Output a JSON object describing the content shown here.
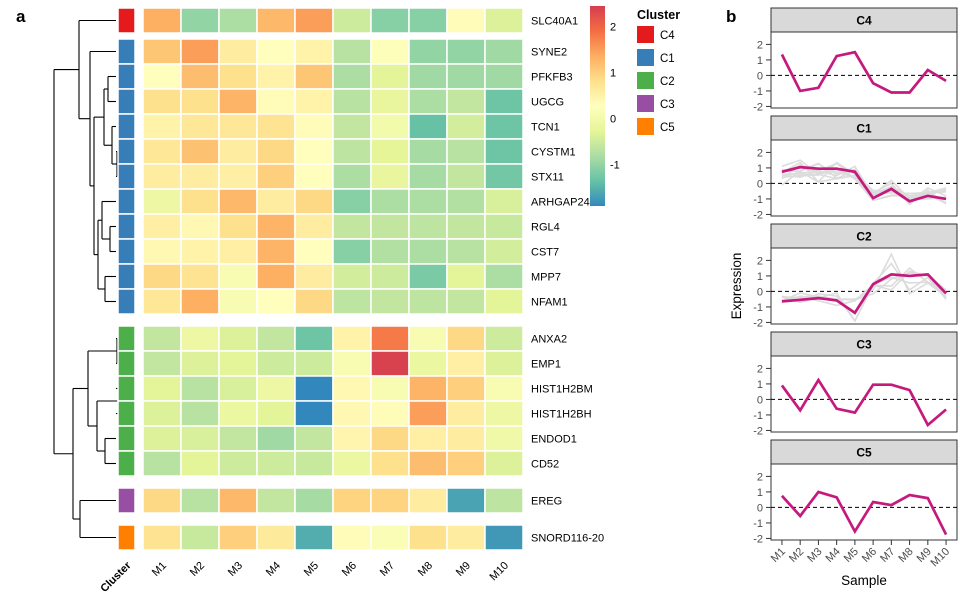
{
  "figure": {
    "panel_a_label": "a",
    "panel_b_label": "b"
  },
  "colors": {
    "mean_line": "#C5197D",
    "gray_line": "#DCDCDC",
    "strip_bg": "#D9D9D9",
    "strip_border": "#333333",
    "panel_border": "#333333",
    "axis_text": "#4D4D4D",
    "dendrogram": "#000000",
    "heat_palette": [
      "#3288BD",
      "#66C2A5",
      "#ABDDA4",
      "#E6F598",
      "#FFFFBF",
      "#FEE08B",
      "#FDAE61",
      "#F46D43",
      "#D53E4F"
    ],
    "heat_domain": [
      -1.9,
      2.45
    ]
  },
  "chart_data": [
    {
      "type": "heatmap",
      "columns": [
        "M1",
        "M2",
        "M3",
        "M4",
        "M5",
        "M6",
        "M7",
        "M8",
        "M9",
        "M10"
      ],
      "row_annotation_label": "Cluster",
      "rows": [
        {
          "gene": "SLC40A1",
          "cluster": "C4",
          "values": [
            1.35,
            -1.0,
            -0.8,
            1.25,
            1.5,
            -0.5,
            -1.1,
            -1.1,
            0.35,
            -0.35
          ]
        },
        {
          "gene": "SYNE2",
          "cluster": "C1",
          "values": [
            1.1,
            1.5,
            0.6,
            0.3,
            0.5,
            -0.7,
            0.2,
            -1.0,
            -1.0,
            -0.9
          ]
        },
        {
          "gene": "PFKFB3",
          "cluster": "C1",
          "values": [
            0.3,
            1.2,
            0.8,
            0.5,
            1.1,
            -0.8,
            -0.3,
            -0.9,
            -0.9,
            -0.9
          ]
        },
        {
          "gene": "UGCG",
          "cluster": "C1",
          "values": [
            0.8,
            0.8,
            1.3,
            0.35,
            0.5,
            -0.7,
            -0.2,
            -0.8,
            -0.6,
            -1.3
          ]
        },
        {
          "gene": "TCN1",
          "cluster": "C1",
          "values": [
            0.5,
            0.7,
            0.7,
            0.75,
            0.35,
            -0.6,
            0.0,
            -1.35,
            -0.45,
            -1.3
          ]
        },
        {
          "gene": "CYSTM1",
          "cluster": "C1",
          "values": [
            0.7,
            1.15,
            0.6,
            0.9,
            0.3,
            -0.65,
            -0.25,
            -0.85,
            -0.7,
            -1.3
          ]
        },
        {
          "gene": "STX11",
          "cluster": "C1",
          "values": [
            0.6,
            0.6,
            0.55,
            1.0,
            0.3,
            -0.8,
            -0.2,
            -0.85,
            -0.6,
            -1.25
          ]
        },
        {
          "gene": "ARHGAP24",
          "cluster": "C1",
          "values": [
            -0.1,
            0.8,
            1.25,
            0.6,
            0.9,
            -1.1,
            -0.8,
            -0.8,
            -0.75,
            -0.4
          ]
        },
        {
          "gene": "RGL4",
          "cluster": "C1",
          "values": [
            0.55,
            0.4,
            0.8,
            1.3,
            0.6,
            -0.6,
            -0.6,
            -0.65,
            -0.6,
            -0.55
          ]
        },
        {
          "gene": "CST7",
          "cluster": "C1",
          "values": [
            0.4,
            0.5,
            0.55,
            1.3,
            0.3,
            -1.1,
            -0.75,
            -0.8,
            -0.7,
            -0.45
          ]
        },
        {
          "gene": "MPP7",
          "cluster": "C1",
          "values": [
            0.9,
            0.75,
            0.1,
            1.35,
            0.6,
            -0.45,
            -0.5,
            -1.2,
            -0.3,
            -0.8
          ]
        },
        {
          "gene": "NFAM1",
          "cluster": "C1",
          "values": [
            0.7,
            1.35,
            0.1,
            0.3,
            0.9,
            -0.65,
            -0.6,
            -0.65,
            -0.6,
            -0.3
          ]
        },
        {
          "gene": "ANXA2",
          "cluster": "C2",
          "values": [
            -0.6,
            -0.1,
            -0.35,
            -0.6,
            -1.3,
            0.5,
            1.8,
            0.1,
            0.9,
            -0.5
          ]
        },
        {
          "gene": "EMP1",
          "cluster": "C2",
          "values": [
            -0.6,
            -0.35,
            -0.3,
            -0.5,
            -0.5,
            0.1,
            2.4,
            -0.15,
            0.55,
            -0.35
          ]
        },
        {
          "gene": "HIST1H2BM",
          "cluster": "C2",
          "values": [
            -0.3,
            -0.7,
            -0.4,
            -0.1,
            -1.9,
            0.4,
            0.1,
            1.3,
            1.0,
            0.1
          ]
        },
        {
          "gene": "HIST1H2BH",
          "cluster": "C2",
          "values": [
            -0.35,
            -0.7,
            -0.15,
            -0.3,
            -1.9,
            0.4,
            0.35,
            1.5,
            0.6,
            -0.1
          ]
        },
        {
          "gene": "ENDOD1",
          "cluster": "C2",
          "values": [
            -0.35,
            -0.4,
            -0.6,
            -0.9,
            -0.6,
            0.45,
            0.9,
            0.55,
            0.6,
            -0.05
          ]
        },
        {
          "gene": "CD52",
          "cluster": "C2",
          "values": [
            -0.7,
            -0.3,
            -0.5,
            -0.5,
            -0.55,
            -0.15,
            0.8,
            1.2,
            1.0,
            -0.35
          ]
        },
        {
          "gene": "EREG",
          "cluster": "C3",
          "values": [
            0.9,
            -0.7,
            1.25,
            -0.6,
            -0.85,
            0.95,
            0.95,
            0.6,
            -1.65,
            -0.65
          ]
        },
        {
          "gene": "SNORD116-20",
          "cluster": "C5",
          "values": [
            0.75,
            -0.55,
            1.0,
            0.65,
            -1.55,
            0.35,
            0.15,
            0.8,
            0.6,
            -1.75
          ]
        }
      ],
      "colorbar": {
        "ticks": [
          2,
          1,
          0,
          -1
        ],
        "range": [
          -1.9,
          2.45
        ]
      },
      "legend": {
        "title": "Cluster",
        "items": [
          {
            "label": "C4",
            "color": "#E41A1C"
          },
          {
            "label": "C1",
            "color": "#377EB8"
          },
          {
            "label": "C2",
            "color": "#4DAF4A"
          },
          {
            "label": "C3",
            "color": "#984EA3"
          },
          {
            "label": "C5",
            "color": "#FF7F00"
          }
        ]
      },
      "dendrogram": {
        "x": 54,
        "c": [
          {
            "x": 79,
            "c": [
              {
                "leaf": "SLC40A1"
              },
              {
                "x": 90,
                "c": [
                  {
                    "leaf": "SYNE2"
                  },
                  {
                    "x": 94,
                    "c": [
                      {
                        "x": 104,
                        "c": [
                          {
                            "x": 108,
                            "c": [
                              {
                                "leaf": "PFKFB3"
                              },
                              {
                                "leaf": "UGCG"
                              }
                            ]
                          },
                          {
                            "x": 112,
                            "c": [
                              {
                                "leaf": "TCN1"
                              },
                              {
                                "x": 117,
                                "c": [
                                  {
                                    "leaf": "CYSTM1"
                                  },
                                  {
                                    "leaf": "STX11"
                                  }
                                ]
                              }
                            ]
                          }
                        ]
                      },
                      {
                        "x": 98,
                        "c": [
                          {
                            "x": 102,
                            "c": [
                              {
                                "leaf": "ARHGAP24"
                              },
                              {
                                "x": 110,
                                "c": [
                                  {
                                    "leaf": "RGL4"
                                  },
                                  {
                                    "leaf": "CST7"
                                  }
                                ]
                              }
                            ]
                          },
                          {
                            "x": 105,
                            "c": [
                              {
                                "leaf": "MPP7"
                              },
                              {
                                "leaf": "NFAM1"
                              }
                            ]
                          }
                        ]
                      }
                    ]
                  }
                ]
              }
            ]
          },
          {
            "x": 73,
            "c": [
              {
                "x": 88,
                "c": [
                  {
                    "x": 117,
                    "c": [
                      {
                        "leaf": "ANXA2"
                      },
                      {
                        "leaf": "EMP1"
                      }
                    ]
                  },
                  {
                    "x": 97,
                    "c": [
                      {
                        "x": 127,
                        "c": [
                          {
                            "leaf": "HIST1H2BM"
                          },
                          {
                            "leaf": "HIST1H2BH"
                          }
                        ]
                      },
                      {
                        "x": 105,
                        "c": [
                          {
                            "leaf": "ENDOD1"
                          },
                          {
                            "leaf": "CD52"
                          }
                        ]
                      }
                    ]
                  }
                ]
              },
              {
                "x": 80,
                "c": [
                  {
                    "leaf": "EREG"
                  },
                  {
                    "leaf": "SNORD116-20"
                  }
                ]
              }
            ]
          }
        ]
      }
    },
    {
      "type": "line",
      "xlabel": "Sample",
      "ylabel": "Expression",
      "x": [
        "M1",
        "M2",
        "M3",
        "M4",
        "M5",
        "M6",
        "M7",
        "M8",
        "M9",
        "M10"
      ],
      "yticks": [
        2,
        1,
        0,
        -1,
        -2
      ],
      "ylim": [
        -2.1,
        2.8
      ],
      "zero_line": 0,
      "facets": [
        {
          "label": "C4",
          "mean": [
            1.35,
            -1.0,
            -0.8,
            1.25,
            1.5,
            -0.5,
            -1.1,
            -1.1,
            0.35,
            -0.35
          ]
        },
        {
          "label": "C1",
          "mean": [
            0.75,
            1.05,
            0.95,
            0.95,
            0.75,
            -0.95,
            -0.35,
            -1.15,
            -0.8,
            -1.0
          ]
        },
        {
          "label": "C2",
          "mean": [
            -0.64,
            -0.54,
            -0.43,
            -0.58,
            -1.38,
            0.47,
            1.1,
            1.0,
            1.1,
            -0.13
          ]
        },
        {
          "label": "C3",
          "mean": [
            0.9,
            -0.7,
            1.25,
            -0.6,
            -0.85,
            0.95,
            0.95,
            0.6,
            -1.65,
            -0.65
          ]
        },
        {
          "label": "C5",
          "mean": [
            0.75,
            -0.55,
            1.0,
            0.65,
            -1.55,
            0.35,
            0.15,
            0.8,
            0.6,
            -1.75
          ]
        }
      ]
    }
  ]
}
